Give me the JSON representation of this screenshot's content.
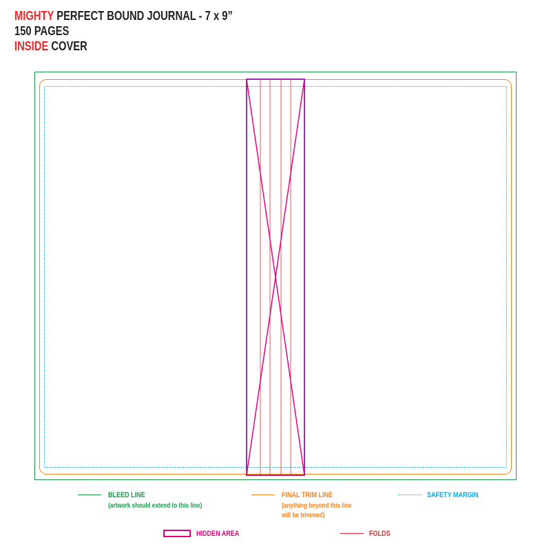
{
  "header": {
    "line1_highlight": "MIGHTY",
    "line1_rest": " PERFECT BOUND JOURNAL - 7 x 9”",
    "line2": "150 PAGES",
    "line3_highlight": "INSIDE",
    "line3_rest": " COVER"
  },
  "legend": {
    "bleed": {
      "label": "BLEED LINE",
      "note": "(artwork should extend to this line)",
      "color": "#1a9a48"
    },
    "trim": {
      "label": "FINAL TRIM LINE",
      "note_line1": "(anything beyond this line",
      "note_line2": "will be trimmed)",
      "color": "#f58220"
    },
    "safety": {
      "label": "SAFETY MARGIN",
      "color": "#00aeef"
    },
    "hidden": {
      "label": "HIDDEN AREA",
      "color": "#e6007e"
    },
    "folds": {
      "label": "FOLDS",
      "color": "#e42b2b"
    }
  },
  "colors": {
    "text": "#231f20",
    "highlight": "#e42b2b",
    "spine": "#9b2fae"
  }
}
